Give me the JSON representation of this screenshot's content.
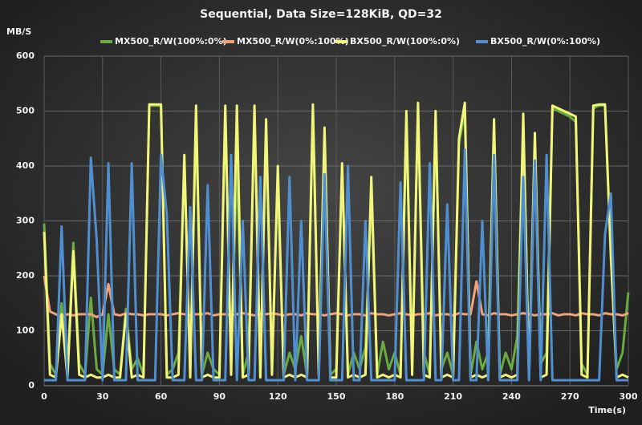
{
  "chart_data": {
    "type": "line",
    "title": "Sequential,  Data Size=128KiB,  QD=32",
    "y_label": "MB/S",
    "x_label": "Time(s)",
    "xlim": [
      0,
      300
    ],
    "xticks": [
      0,
      30,
      60,
      90,
      120,
      150,
      180,
      210,
      240,
      270,
      300
    ],
    "ylim": [
      0,
      600
    ],
    "yticks": [
      0,
      100,
      200,
      300,
      400,
      500,
      600
    ],
    "grid": true,
    "legend": "top",
    "x": [
      0,
      3,
      6,
      9,
      12,
      15,
      18,
      21,
      24,
      27,
      30,
      33,
      36,
      39,
      42,
      45,
      48,
      51,
      54,
      57,
      60,
      63,
      66,
      69,
      72,
      75,
      78,
      81,
      84,
      87,
      90,
      93,
      96,
      99,
      102,
      105,
      108,
      111,
      114,
      117,
      120,
      123,
      126,
      129,
      132,
      135,
      138,
      141,
      144,
      147,
      150,
      153,
      156,
      159,
      162,
      165,
      168,
      171,
      174,
      177,
      180,
      183,
      186,
      189,
      192,
      195,
      198,
      201,
      204,
      207,
      210,
      213,
      216,
      219,
      222,
      225,
      228,
      231,
      234,
      237,
      240,
      243,
      246,
      249,
      252,
      255,
      258,
      261,
      264,
      267,
      270,
      273,
      276,
      279,
      282,
      285,
      288,
      291,
      294,
      297,
      300
    ],
    "series": [
      {
        "name": "MX500_R/W(100%:0%)",
        "color": "#6aab3f",
        "values": [
          295,
          40,
          20,
          150,
          30,
          260,
          40,
          20,
          160,
          30,
          20,
          130,
          30,
          20,
          140,
          30,
          50,
          20,
          510,
          510,
          510,
          20,
          30,
          60,
          410,
          30,
          480,
          20,
          60,
          30,
          20,
          500,
          40,
          410,
          20,
          60,
          490,
          20,
          460,
          40,
          380,
          20,
          60,
          30,
          90,
          20,
          505,
          40,
          450,
          20,
          30,
          400,
          20,
          60,
          30,
          70,
          350,
          20,
          80,
          30,
          60,
          20,
          480,
          40,
          500,
          60,
          20,
          480,
          30,
          60,
          20,
          440,
          500,
          20,
          80,
          30,
          60,
          470,
          20,
          60,
          30,
          90,
          480,
          20,
          440,
          40,
          60,
          505,
          500,
          495,
          490,
          480,
          40,
          20,
          505,
          510,
          510,
          230,
          30,
          60,
          170
        ]
      },
      {
        "name": "MX500_R/W(0%:100%)",
        "color": "#f0a27a",
        "values": [
          200,
          135,
          130,
          125,
          130,
          128,
          130,
          130,
          130,
          125,
          130,
          185,
          130,
          128,
          132,
          130,
          130,
          128,
          130,
          130,
          130,
          128,
          130,
          132,
          130,
          128,
          130,
          130,
          132,
          128,
          130,
          130,
          128,
          130,
          132,
          130,
          128,
          130,
          130,
          132,
          130,
          128,
          130,
          130,
          128,
          132,
          130,
          130,
          128,
          130,
          132,
          130,
          128,
          130,
          130,
          128,
          132,
          130,
          130,
          128,
          130,
          132,
          130,
          128,
          130,
          130,
          132,
          128,
          130,
          130,
          128,
          132,
          130,
          130,
          190,
          130,
          128,
          132,
          130,
          130,
          128,
          130,
          132,
          130,
          128,
          130,
          130,
          132,
          128,
          130,
          130,
          128,
          132,
          130,
          130,
          128,
          132,
          130,
          130,
          128,
          132
        ]
      },
      {
        "name": "BX500_R/W(100%:0%)",
        "color": "#f3f57a",
        "values": [
          280,
          20,
          15,
          130,
          15,
          245,
          20,
          15,
          20,
          15,
          15,
          20,
          15,
          15,
          130,
          15,
          20,
          15,
          512,
          512,
          512,
          15,
          15,
          20,
          420,
          15,
          510,
          15,
          20,
          15,
          15,
          510,
          20,
          510,
          15,
          20,
          510,
          15,
          485,
          20,
          400,
          15,
          20,
          15,
          20,
          15,
          512,
          20,
          470,
          15,
          15,
          405,
          15,
          20,
          15,
          20,
          380,
          15,
          20,
          15,
          20,
          15,
          500,
          20,
          515,
          20,
          15,
          500,
          15,
          20,
          15,
          450,
          515,
          15,
          20,
          15,
          20,
          485,
          15,
          20,
          15,
          20,
          495,
          15,
          460,
          15,
          20,
          510,
          505,
          500,
          495,
          490,
          20,
          15,
          510,
          512,
          512,
          240,
          15,
          20,
          15
        ]
      },
      {
        "name": "BX500_R/W(0%:100%)",
        "color": "#4f8fd0",
        "values": [
          10,
          10,
          10,
          290,
          10,
          10,
          10,
          10,
          415,
          265,
          10,
          405,
          10,
          10,
          10,
          405,
          10,
          10,
          10,
          10,
          420,
          310,
          10,
          10,
          10,
          325,
          10,
          10,
          365,
          10,
          10,
          10,
          420,
          10,
          300,
          10,
          10,
          380,
          10,
          10,
          10,
          10,
          380,
          10,
          300,
          10,
          10,
          10,
          385,
          10,
          10,
          10,
          400,
          10,
          10,
          300,
          10,
          10,
          10,
          10,
          10,
          370,
          10,
          10,
          10,
          10,
          405,
          10,
          10,
          330,
          10,
          10,
          430,
          10,
          10,
          300,
          10,
          420,
          10,
          10,
          10,
          10,
          380,
          10,
          410,
          10,
          420,
          10,
          10,
          10,
          10,
          10,
          10,
          10,
          10,
          10,
          275,
          350,
          10,
          10,
          10
        ]
      }
    ]
  }
}
